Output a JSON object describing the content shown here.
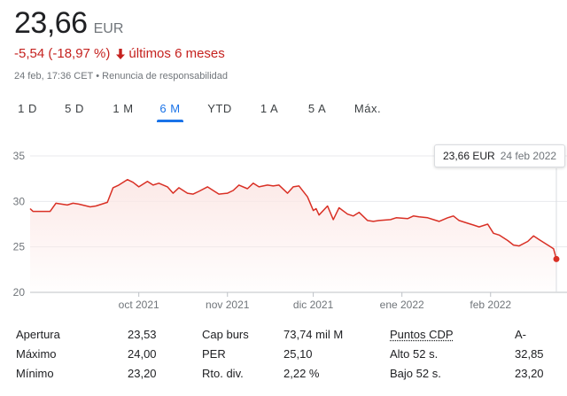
{
  "quote": {
    "price": "23,66",
    "currency": "EUR",
    "change": "-5,54 (-18,97 %)",
    "period_label": "últimos 6 meses",
    "timestamp": "24 feb, 17:36 CET",
    "separator": "•",
    "disclaimer": "Renuncia de responsabilidad",
    "down_color": "#c5221f",
    "arrow_icon": "arrow-down-icon"
  },
  "tabs": [
    {
      "label": "1 D"
    },
    {
      "label": "5 D"
    },
    {
      "label": "1 M"
    },
    {
      "label": "6 M",
      "active": true
    },
    {
      "label": "YTD"
    },
    {
      "label": "1 A"
    },
    {
      "label": "5 A"
    },
    {
      "label": "Máx."
    }
  ],
  "tooltip": {
    "price": "23,66 EUR",
    "date": "24 feb 2022"
  },
  "chart_data": {
    "type": "line",
    "ylim": [
      20,
      35
    ],
    "yticks": [
      35,
      30,
      25,
      20
    ],
    "x_ticks": [
      "oct 2021",
      "nov 2021",
      "dic 2021",
      "ene 2022",
      "feb 2022"
    ],
    "x_tick_dates": [
      "2021-10-01",
      "2021-11-01",
      "2021-12-01",
      "2022-01-01",
      "2022-02-01"
    ],
    "x_range": [
      "2021-08-24",
      "2022-02-24"
    ],
    "grid": true,
    "line_color": "#d93025",
    "fill_color": "#fce8e6",
    "series": [
      {
        "x": [
          "2021-08-24",
          "2021-08-25",
          "2021-08-27",
          "2021-08-31",
          "2021-09-02",
          "2021-09-06",
          "2021-09-08",
          "2021-09-10",
          "2021-09-14",
          "2021-09-16",
          "2021-09-20",
          "2021-09-22",
          "2021-09-24",
          "2021-09-27",
          "2021-09-29",
          "2021-10-01",
          "2021-10-04",
          "2021-10-06",
          "2021-10-08",
          "2021-10-11",
          "2021-10-13",
          "2021-10-15",
          "2021-10-18",
          "2021-10-20",
          "2021-10-22",
          "2021-10-25",
          "2021-10-27",
          "2021-10-29",
          "2021-11-01",
          "2021-11-03",
          "2021-11-05",
          "2021-11-08",
          "2021-11-10",
          "2021-11-12",
          "2021-11-15",
          "2021-11-17",
          "2021-11-19",
          "2021-11-22",
          "2021-11-24",
          "2021-11-26",
          "2021-11-29",
          "2021-12-01",
          "2021-12-02",
          "2021-12-03",
          "2021-12-06",
          "2021-12-08",
          "2021-12-10",
          "2021-12-13",
          "2021-12-15",
          "2021-12-17",
          "2021-12-20",
          "2021-12-22",
          "2021-12-24",
          "2021-12-28",
          "2021-12-30",
          "2022-01-03",
          "2022-01-05",
          "2022-01-07",
          "2022-01-10",
          "2022-01-12",
          "2022-01-14",
          "2022-01-17",
          "2022-01-19",
          "2022-01-21",
          "2022-01-24",
          "2022-01-26",
          "2022-01-28",
          "2022-01-31",
          "2022-02-02",
          "2022-02-04",
          "2022-02-07",
          "2022-02-09",
          "2022-02-11",
          "2022-02-14",
          "2022-02-16",
          "2022-02-18",
          "2022-02-21",
          "2022-02-23",
          "2022-02-24"
        ],
        "y": [
          29.2,
          28.9,
          28.9,
          28.9,
          29.8,
          29.6,
          29.8,
          29.7,
          29.4,
          29.5,
          29.9,
          31.5,
          31.8,
          32.4,
          32.1,
          31.6,
          32.2,
          31.8,
          32.0,
          31.6,
          30.9,
          31.5,
          30.9,
          30.8,
          31.1,
          31.6,
          31.2,
          30.8,
          30.9,
          31.2,
          31.8,
          31.4,
          32.0,
          31.6,
          31.8,
          31.7,
          31.8,
          30.9,
          31.6,
          31.7,
          30.5,
          29.0,
          29.2,
          28.5,
          29.5,
          28.0,
          29.3,
          28.6,
          28.4,
          28.8,
          27.9,
          27.8,
          27.9,
          28.0,
          28.2,
          28.1,
          28.4,
          28.3,
          28.2,
          28.0,
          27.8,
          28.2,
          28.4,
          27.9,
          27.6,
          27.4,
          27.2,
          27.5,
          26.5,
          26.3,
          25.7,
          25.2,
          25.1,
          25.6,
          26.2,
          25.8,
          25.2,
          24.8,
          23.66
        ]
      }
    ]
  },
  "stats": {
    "rows": [
      [
        {
          "label": "Apertura",
          "value": "23,53"
        },
        {
          "label": "Cap burs",
          "value": "73,74 mil M"
        },
        {
          "label": "Puntos CDP",
          "value": "A-",
          "link": true
        }
      ],
      [
        {
          "label": "Máximo",
          "value": "24,00"
        },
        {
          "label": "PER",
          "value": "25,10"
        },
        {
          "label": "Alto 52 s.",
          "value": "32,85"
        }
      ],
      [
        {
          "label": "Mínimo",
          "value": "23,20"
        },
        {
          "label": "Rto. div.",
          "value": "2,22 %"
        },
        {
          "label": "Bajo 52 s.",
          "value": "23,20"
        }
      ]
    ]
  }
}
